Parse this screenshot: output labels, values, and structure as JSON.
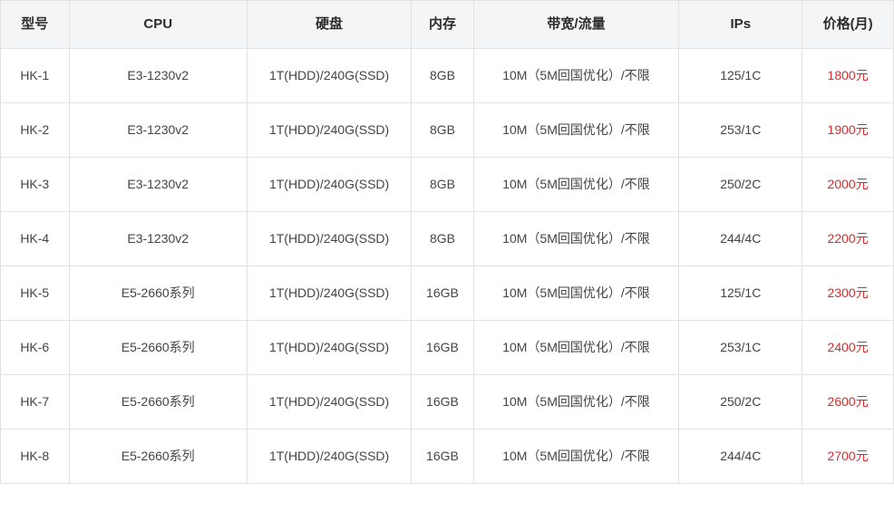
{
  "table": {
    "columns": [
      {
        "key": "model",
        "label": "型号",
        "class": "col-model"
      },
      {
        "key": "cpu",
        "label": "CPU",
        "class": "col-cpu"
      },
      {
        "key": "disk",
        "label": "硬盘",
        "class": "col-disk"
      },
      {
        "key": "mem",
        "label": "内存",
        "class": "col-mem"
      },
      {
        "key": "bw",
        "label": "带宽/流量",
        "class": "col-bw"
      },
      {
        "key": "ips",
        "label": "IPs",
        "class": "col-ips"
      },
      {
        "key": "price",
        "label": "价格(月)",
        "class": "col-price"
      }
    ],
    "rows": [
      {
        "model": "HK-1",
        "cpu": "E3-1230v2",
        "disk": "1T(HDD)/240G(SSD)",
        "mem": "8GB",
        "bw": "10M（5M回国优化）/不限",
        "ips": "125/1C",
        "price": "1800元"
      },
      {
        "model": "HK-2",
        "cpu": "E3-1230v2",
        "disk": "1T(HDD)/240G(SSD)",
        "mem": "8GB",
        "bw": "10M（5M回国优化）/不限",
        "ips": "253/1C",
        "price": "1900元"
      },
      {
        "model": "HK-3",
        "cpu": "E3-1230v2",
        "disk": "1T(HDD)/240G(SSD)",
        "mem": "8GB",
        "bw": "10M（5M回国优化）/不限",
        "ips": "250/2C",
        "price": "2000元"
      },
      {
        "model": "HK-4",
        "cpu": "E3-1230v2",
        "disk": "1T(HDD)/240G(SSD)",
        "mem": "8GB",
        "bw": "10M（5M回国优化）/不限",
        "ips": "244/4C",
        "price": "2200元"
      },
      {
        "model": "HK-5",
        "cpu": "E5-2660系列",
        "disk": "1T(HDD)/240G(SSD)",
        "mem": "16GB",
        "bw": "10M（5M回国优化）/不限",
        "ips": "125/1C",
        "price": "2300元"
      },
      {
        "model": "HK-6",
        "cpu": "E5-2660系列",
        "disk": "1T(HDD)/240G(SSD)",
        "mem": "16GB",
        "bw": "10M（5M回国优化）/不限",
        "ips": "253/1C",
        "price": "2400元"
      },
      {
        "model": "HK-7",
        "cpu": "E5-2660系列",
        "disk": "1T(HDD)/240G(SSD)",
        "mem": "16GB",
        "bw": "10M（5M回国优化）/不限",
        "ips": "250/2C",
        "price": "2600元"
      },
      {
        "model": "HK-8",
        "cpu": "E5-2660系列",
        "disk": "1T(HDD)/240G(SSD)",
        "mem": "16GB",
        "bw": "10M（5M回国优化）/不限",
        "ips": "244/4C",
        "price": "2700元"
      }
    ],
    "style": {
      "header_bg": "#f4f5f7",
      "border_color": "#e2e2e2",
      "text_color": "#444444",
      "header_text_color": "#2c2c2c",
      "price_color": "#d92b2b",
      "font_size_body": 14,
      "font_size_header": 15
    }
  }
}
